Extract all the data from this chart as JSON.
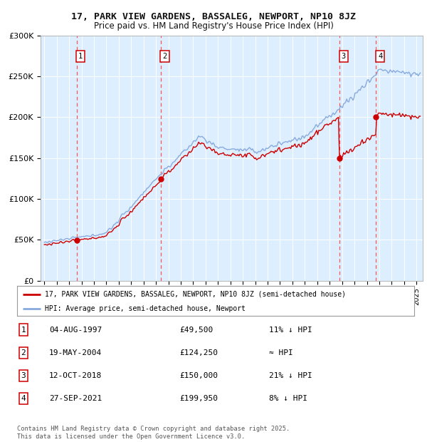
{
  "title_line1": "17, PARK VIEW GARDENS, BASSALEG, NEWPORT, NP10 8JZ",
  "title_line2": "Price paid vs. HM Land Registry's House Price Index (HPI)",
  "background_color": "#ddeeff",
  "hpi_color": "#88aadd",
  "price_color": "#cc0000",
  "dashed_color": "#ff5555",
  "ylim": [
    0,
    300000
  ],
  "yticks": [
    0,
    50000,
    100000,
    150000,
    200000,
    250000,
    300000
  ],
  "ytick_labels": [
    "£0",
    "£50K",
    "£100K",
    "£150K",
    "£200K",
    "£250K",
    "£300K"
  ],
  "xmin": 1994.7,
  "xmax": 2025.5,
  "sale_dates": [
    1997.6,
    2004.38,
    2018.78,
    2021.74
  ],
  "sale_prices": [
    49500,
    124250,
    150000,
    199950
  ],
  "sale_labels": [
    "1",
    "2",
    "3",
    "4"
  ],
  "legend_line1": "17, PARK VIEW GARDENS, BASSALEG, NEWPORT, NP10 8JZ (semi-detached house)",
  "legend_line2": "HPI: Average price, semi-detached house, Newport",
  "table_rows": [
    {
      "num": "1",
      "date": "04-AUG-1997",
      "price": "£49,500",
      "note": "11% ↓ HPI"
    },
    {
      "num": "2",
      "date": "19-MAY-2004",
      "price": "£124,250",
      "note": "≈ HPI"
    },
    {
      "num": "3",
      "date": "12-OCT-2018",
      "price": "£150,000",
      "note": "21% ↓ HPI"
    },
    {
      "num": "4",
      "date": "27-SEP-2021",
      "price": "£199,950",
      "note": "8% ↓ HPI"
    }
  ],
  "footer": "Contains HM Land Registry data © Crown copyright and database right 2025.\nThis data is licensed under the Open Government Licence v3.0."
}
